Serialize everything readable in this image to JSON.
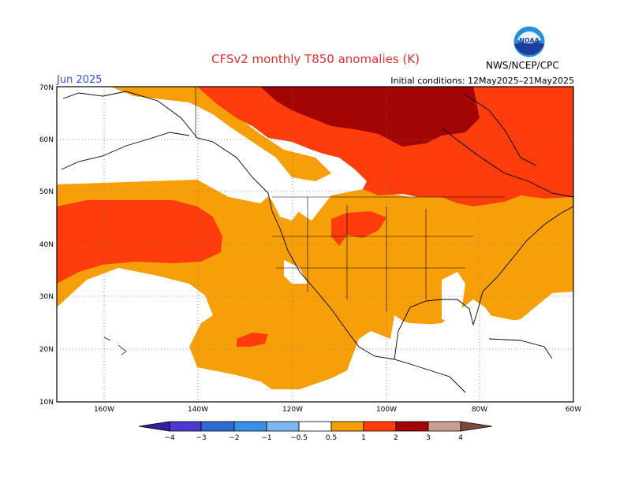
{
  "header": {
    "title": "CFSv2 monthly T850 anomalies (K)",
    "month": "Jun 2025",
    "initial_conditions": "Initial conditions: 12May2025–21May2025",
    "agency": "NWS/NCEP/CPC",
    "logo_text": "NOAA"
  },
  "axes": {
    "lat_labels": [
      "70N",
      "60N",
      "50N",
      "40N",
      "30N",
      "20N",
      "10N"
    ],
    "lon_labels": [
      "160W",
      "140W",
      "120W",
      "100W",
      "80W",
      "60W"
    ]
  },
  "legend": {
    "ticks": [
      "−4",
      "−3",
      "−2",
      "−1",
      "−0.5",
      "0.5",
      "1",
      "2",
      "3",
      "4"
    ],
    "colors": [
      "#3a1ea0",
      "#4a3ad0",
      "#2c6ad6",
      "#3b8fe6",
      "#7fb8f0",
      "#ffffff",
      "#f79f08",
      "#ff3c0c",
      "#a30404",
      "#c8a090",
      "#7a4a3a"
    ]
  },
  "anomaly_colors": {
    "light_orange": "#f79f08",
    "red_orange": "#ff3c0c",
    "dark_red": "#a30404"
  }
}
